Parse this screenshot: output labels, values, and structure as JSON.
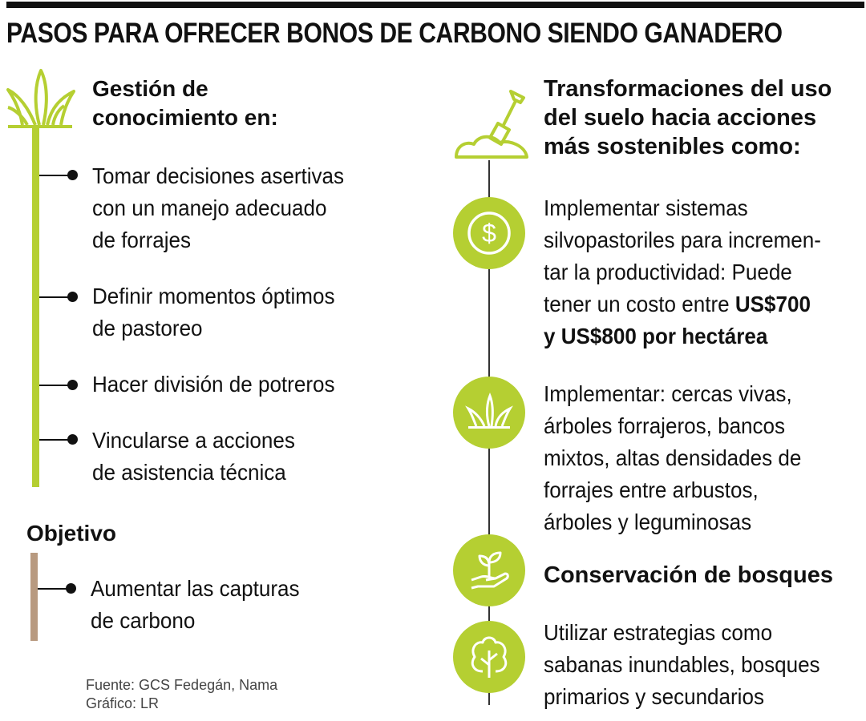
{
  "title": "PASOS PARA OFRECER BONOS DE CARBONO SIENDO GANADERO",
  "colors": {
    "accent": "#b5cf32",
    "objective_stem": "#b89a80",
    "text": "#111111"
  },
  "left": {
    "icon": "grass-icon",
    "heading": [
      "Gestión de",
      "conocimiento en:"
    ],
    "items": [
      [
        "Tomar decisiones asertivas",
        "con un manejo adecuado",
        "de forrajes"
      ],
      [
        "Definir momentos óptimos",
        "de pastoreo"
      ],
      [
        "Hacer división de potreros"
      ],
      [
        "Vincularse a acciones",
        "de asistencia técnica"
      ]
    ],
    "objective": {
      "heading": "Objetivo",
      "items": [
        [
          "Aumentar las capturas",
          "de carbono"
        ]
      ]
    },
    "source": [
      "Fuente: GCS Fedegán, Nama",
      "Gráfico: LR"
    ]
  },
  "right": {
    "icon": "shovel-soil-icon",
    "heading": [
      "Transformaciones del uso",
      "del suelo hacia acciones",
      "más sostenibles como:"
    ],
    "items": [
      {
        "icon": "dollar-icon",
        "lines": [
          "Implementar sistemas",
          "silvopastoriles para incremen-",
          "tar la productividad: Puede",
          "tener un costo entre "
        ],
        "bold_tail": "US$700",
        "bold_line": "y US$800 por hectárea"
      },
      {
        "icon": "grass-icon",
        "lines": [
          "Implementar: cercas vivas,",
          "árboles forrajeros,  bancos",
          "mixtos, altas densidades de",
          "forrajes entre arbustos,",
          "árboles y leguminosas"
        ]
      },
      {
        "icon": "plant-hand-icon",
        "heading": "Conservación de bosques"
      },
      {
        "icon": "tree-icon",
        "lines": [
          "Utilizar estrategias como",
          "sabanas inundables, bosques",
          "primarios y secundarios"
        ]
      }
    ]
  }
}
